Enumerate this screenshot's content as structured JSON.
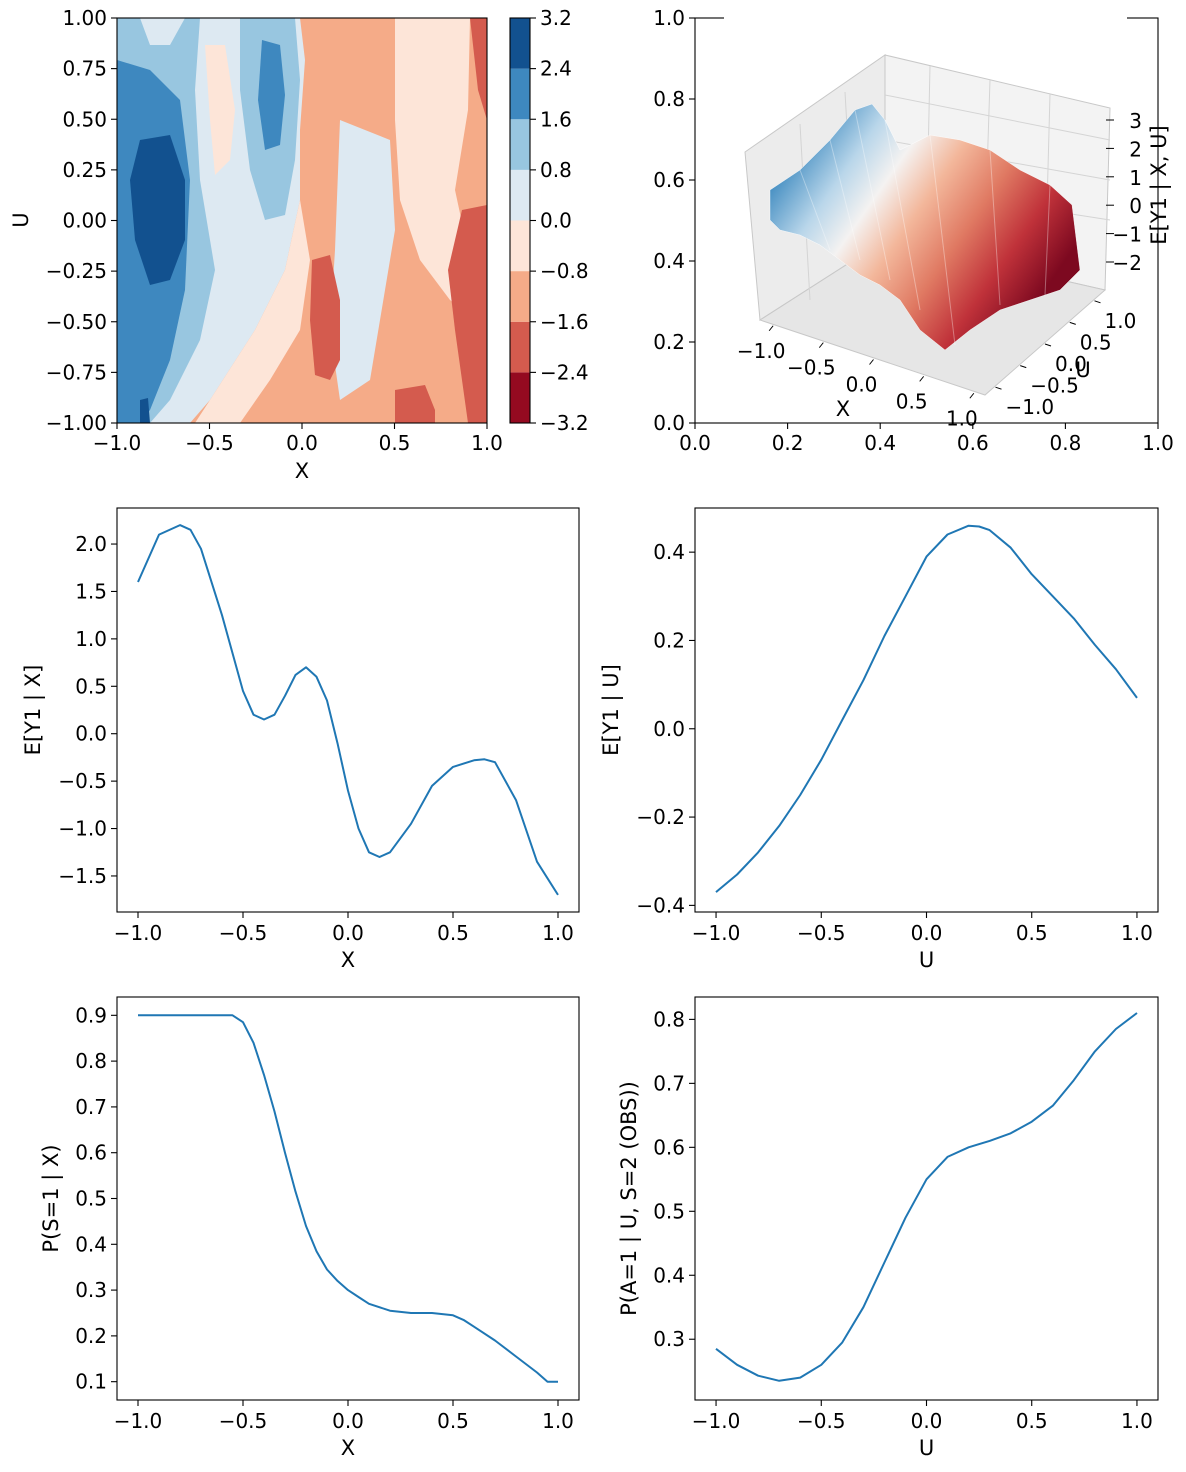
{
  "chart_data": [
    {
      "type": "heatmap",
      "subtype": "filled-contour",
      "xlabel": "X",
      "ylabel": "U",
      "xlim": [
        -1,
        1
      ],
      "ylim": [
        -1,
        1
      ],
      "xticks": [
        "−1.0",
        "−0.5",
        "0.0",
        "0.5",
        "1.0"
      ],
      "yticks": [
        "−1.00",
        "−0.75",
        "−0.50",
        "−0.25",
        "0.00",
        "0.25",
        "0.50",
        "0.75",
        "1.00"
      ],
      "colorbar": {
        "levels": [
          -3.2,
          -2.4,
          -1.6,
          -0.8,
          0.0,
          0.8,
          1.6,
          2.4,
          3.2
        ],
        "tick_labels": [
          "−3.2",
          "−2.4",
          "−1.6",
          "−0.8",
          "0.0",
          "0.8",
          "1.6",
          "2.4",
          "3.2"
        ],
        "colors": [
          "#940a20",
          "#d45b4e",
          "#f5ab88",
          "#fde5d8",
          "#dde9f2",
          "#98c6e0",
          "#3e88bf",
          "#12518f"
        ]
      },
      "grid": false
    },
    {
      "type": "surface",
      "xlabel": "X",
      "ylabel": "U",
      "zlabel": "E[Y1 | X, U]",
      "xticks": [
        "−1.0",
        "−0.5",
        "0.0",
        "0.5",
        "1.0"
      ],
      "yticks": [
        "−1.0",
        "−0.5",
        "0.0",
        "0.5",
        "1.0"
      ],
      "zticks": [
        "−2",
        "−1",
        "0",
        "1",
        "2",
        "3"
      ],
      "outer_xticks": [
        "0.0",
        "0.2",
        "0.4",
        "0.6",
        "0.8",
        "1.0"
      ],
      "outer_yticks": [
        "0.0",
        "0.2",
        "0.4",
        "0.6",
        "0.8",
        "1.0"
      ],
      "colormap": "RdBu",
      "grid": true
    },
    {
      "type": "line",
      "xlabel": "X",
      "ylabel": "E[Y1 | X]",
      "xlim": [
        -1.1,
        1.1
      ],
      "ylim": [
        -1.88,
        2.38
      ],
      "xticks": [
        -1.0,
        -0.5,
        0.0,
        0.5,
        1.0
      ],
      "xtick_labels": [
        "−1.0",
        "−0.5",
        "0.0",
        "0.5",
        "1.0"
      ],
      "yticks": [
        -1.5,
        -1.0,
        -0.5,
        0.0,
        0.5,
        1.0,
        1.5,
        2.0
      ],
      "ytick_labels": [
        "−1.5",
        "−1.0",
        "−0.5",
        "0.0",
        "0.5",
        "1.0",
        "1.5",
        "2.0"
      ],
      "color": "#1f77b4",
      "x": [
        -1.0,
        -0.9,
        -0.8,
        -0.75,
        -0.7,
        -0.6,
        -0.5,
        -0.45,
        -0.4,
        -0.35,
        -0.3,
        -0.25,
        -0.2,
        -0.15,
        -0.1,
        -0.05,
        0.0,
        0.05,
        0.1,
        0.15,
        0.2,
        0.3,
        0.4,
        0.5,
        0.6,
        0.65,
        0.7,
        0.8,
        0.9,
        1.0
      ],
      "y": [
        1.6,
        2.1,
        2.2,
        2.15,
        1.95,
        1.25,
        0.45,
        0.2,
        0.15,
        0.2,
        0.4,
        0.62,
        0.7,
        0.6,
        0.35,
        -0.1,
        -0.6,
        -1.0,
        -1.25,
        -1.3,
        -1.25,
        -0.95,
        -0.55,
        -0.35,
        -0.28,
        -0.27,
        -0.3,
        -0.7,
        -1.35,
        -1.7
      ],
      "grid": false
    },
    {
      "type": "line",
      "xlabel": "U",
      "ylabel": "E[Y1 | U]",
      "xlim": [
        -1.1,
        1.1
      ],
      "ylim": [
        -0.415,
        0.5
      ],
      "xticks": [
        -1.0,
        -0.5,
        0.0,
        0.5,
        1.0
      ],
      "xtick_labels": [
        "−1.0",
        "−0.5",
        "0.0",
        "0.5",
        "1.0"
      ],
      "yticks": [
        -0.4,
        -0.2,
        0.0,
        0.2,
        0.4
      ],
      "ytick_labels": [
        "−0.4",
        "−0.2",
        "0.0",
        "0.2",
        "0.4"
      ],
      "color": "#1f77b4",
      "x": [
        -1.0,
        -0.9,
        -0.8,
        -0.7,
        -0.6,
        -0.5,
        -0.4,
        -0.3,
        -0.2,
        -0.1,
        0.0,
        0.1,
        0.2,
        0.25,
        0.3,
        0.4,
        0.5,
        0.6,
        0.7,
        0.8,
        0.9,
        1.0
      ],
      "y": [
        -0.37,
        -0.33,
        -0.28,
        -0.22,
        -0.15,
        -0.07,
        0.02,
        0.11,
        0.21,
        0.3,
        0.39,
        0.44,
        0.46,
        0.458,
        0.45,
        0.41,
        0.35,
        0.3,
        0.25,
        0.19,
        0.135,
        0.07
      ],
      "grid": false
    },
    {
      "type": "line",
      "xlabel": "X",
      "ylabel": "P(S=1 | X)",
      "xlim": [
        -1.1,
        1.1
      ],
      "ylim": [
        0.06,
        0.94
      ],
      "xticks": [
        -1.0,
        -0.5,
        0.0,
        0.5,
        1.0
      ],
      "xtick_labels": [
        "−1.0",
        "−0.5",
        "0.0",
        "0.5",
        "1.0"
      ],
      "yticks": [
        0.1,
        0.2,
        0.3,
        0.4,
        0.5,
        0.6,
        0.7,
        0.8,
        0.9
      ],
      "ytick_labels": [
        "0.1",
        "0.2",
        "0.3",
        "0.4",
        "0.5",
        "0.6",
        "0.7",
        "0.8",
        "0.9"
      ],
      "color": "#1f77b4",
      "x": [
        -1.0,
        -0.9,
        -0.8,
        -0.7,
        -0.6,
        -0.55,
        -0.5,
        -0.45,
        -0.4,
        -0.35,
        -0.3,
        -0.25,
        -0.2,
        -0.15,
        -0.1,
        -0.05,
        0.0,
        0.05,
        0.1,
        0.2,
        0.3,
        0.4,
        0.5,
        0.55,
        0.6,
        0.7,
        0.8,
        0.9,
        0.95,
        1.0
      ],
      "y": [
        0.9,
        0.9,
        0.9,
        0.9,
        0.9,
        0.9,
        0.885,
        0.84,
        0.77,
        0.69,
        0.6,
        0.515,
        0.44,
        0.385,
        0.345,
        0.32,
        0.3,
        0.285,
        0.27,
        0.255,
        0.25,
        0.25,
        0.245,
        0.235,
        0.22,
        0.19,
        0.155,
        0.12,
        0.1,
        0.1
      ],
      "grid": false
    },
    {
      "type": "line",
      "xlabel": "U",
      "ylabel": "P(A=1 | U, S=2 (OBS))",
      "xlim": [
        -1.1,
        1.1
      ],
      "ylim": [
        0.205,
        0.835
      ],
      "xticks": [
        -1.0,
        -0.5,
        0.0,
        0.5,
        1.0
      ],
      "xtick_labels": [
        "−1.0",
        "−0.5",
        "0.0",
        "0.5",
        "1.0"
      ],
      "yticks": [
        0.3,
        0.4,
        0.5,
        0.6,
        0.7,
        0.8
      ],
      "ytick_labels": [
        "0.3",
        "0.4",
        "0.5",
        "0.6",
        "0.7",
        "0.8"
      ],
      "color": "#1f77b4",
      "x": [
        -1.0,
        -0.9,
        -0.8,
        -0.7,
        -0.6,
        -0.5,
        -0.4,
        -0.3,
        -0.2,
        -0.1,
        0.0,
        0.1,
        0.2,
        0.3,
        0.4,
        0.5,
        0.6,
        0.7,
        0.8,
        0.9,
        1.0
      ],
      "y": [
        0.285,
        0.26,
        0.243,
        0.235,
        0.24,
        0.26,
        0.295,
        0.35,
        0.42,
        0.49,
        0.55,
        0.585,
        0.6,
        0.61,
        0.622,
        0.64,
        0.665,
        0.705,
        0.75,
        0.785,
        0.81
      ],
      "grid": false
    }
  ]
}
